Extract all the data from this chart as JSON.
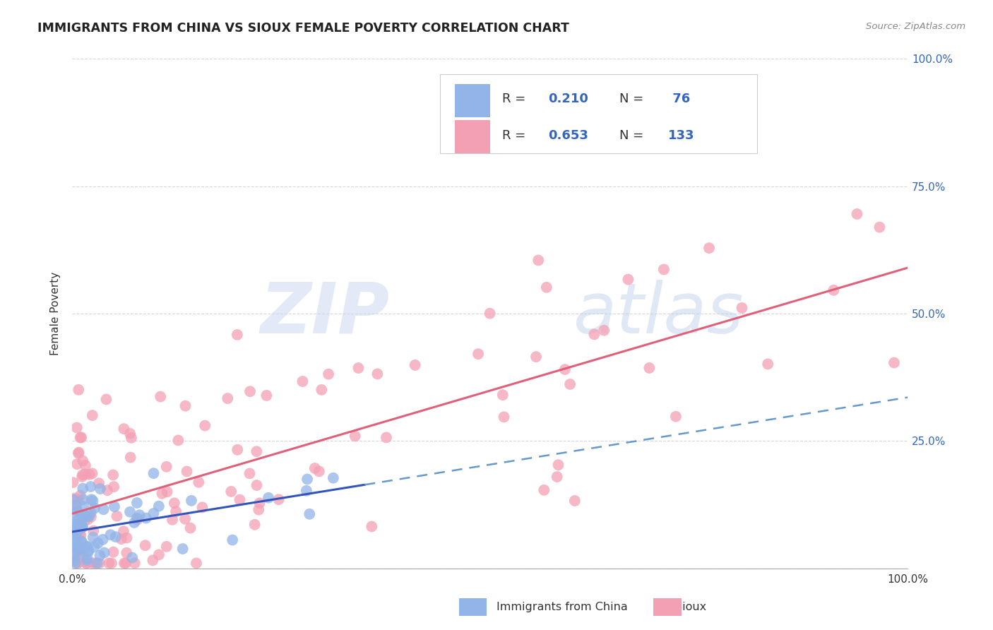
{
  "title": "IMMIGRANTS FROM CHINA VS SIOUX FEMALE POVERTY CORRELATION CHART",
  "source": "Source: ZipAtlas.com",
  "ylabel": "Female Poverty",
  "color_china": "#92b4e8",
  "color_sioux": "#f4a0b4",
  "color_china_line": "#3355bb",
  "color_sioux_line": "#e0607a",
  "color_china_line_dash": "#6699cc",
  "watermark_zip_color": "#ccd8f0",
  "watermark_atlas_color": "#b8cce8",
  "legend_r1": "0.210",
  "legend_n1": "76",
  "legend_r2": "0.653",
  "legend_n2": "133",
  "ytick_color": "#3366bb",
  "title_color": "#222222",
  "source_color": "#888888",
  "grid_color": "#cccccc",
  "spine_color": "#aaaaaa"
}
